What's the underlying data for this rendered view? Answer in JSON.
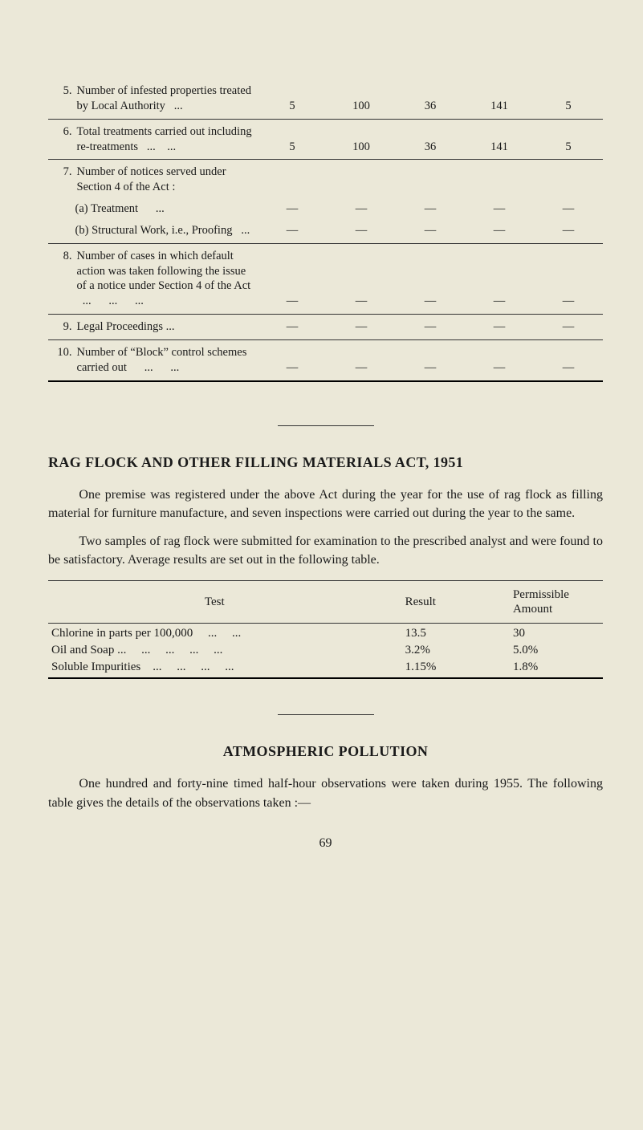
{
  "upper_table": {
    "rows": [
      {
        "num": "5.",
        "label": "Number of infested properties treated by Local Authority   ...",
        "c1": "5",
        "c2": "100",
        "c3": "36",
        "c4": "141",
        "c5": "5",
        "sub": false
      },
      {
        "num": "6.",
        "label": "Total treatments carried out including re-treatments   ...    ...",
        "c1": "5",
        "c2": "100",
        "c3": "36",
        "c4": "141",
        "c5": "5",
        "sub": false
      },
      {
        "num": "7.",
        "label": "Number of notices served under Section 4 of the Act :",
        "c1": "",
        "c2": "",
        "c3": "",
        "c4": "",
        "c5": "",
        "sub": false,
        "no_hr": true
      },
      {
        "num": "",
        "label": "(a) Treatment      ...",
        "c1": "—",
        "c2": "—",
        "c3": "—",
        "c4": "—",
        "c5": "—",
        "sub": true,
        "no_hr": true
      },
      {
        "num": "",
        "label": "(b) Structural Work, i.e., Proofing   ...",
        "c1": "—",
        "c2": "—",
        "c3": "—",
        "c4": "—",
        "c5": "—",
        "sub": true
      },
      {
        "num": "8.",
        "label": "Number of cases in which default action was taken following the issue of a notice under Section 4 of the Act   ...      ...      ...",
        "c1": "—",
        "c2": "—",
        "c3": "—",
        "c4": "—",
        "c5": "—",
        "sub": false
      },
      {
        "num": "9.",
        "label": "Legal Proceedings ...",
        "c1": "—",
        "c2": "—",
        "c3": "—",
        "c4": "—",
        "c5": "—",
        "sub": false
      },
      {
        "num": "10.",
        "label": "Number of “Block” control schemes carried out      ...      ...",
        "c1": "—",
        "c2": "—",
        "c3": "—",
        "c4": "—",
        "c5": "—",
        "sub": false,
        "thick": true
      }
    ]
  },
  "section1": {
    "title": "RAG FLOCK AND OTHER FILLING MATERIALS ACT, 1951",
    "p1": "One premise was registered under the above Act during the year for the use of rag flock as filling material for furniture manufacture, and seven inspections were carried out during the year to the same.",
    "p2": "Two samples of rag flock were submitted for examination to the prescribed analyst and were found to be satisfactory. Average results are set out in the following table."
  },
  "rag_table": {
    "headers": {
      "test": "Test",
      "result": "Result",
      "perm": "Permissible Amount"
    },
    "rows": [
      {
        "test": "Chlorine in parts per 100,000     ...     ...",
        "result": "13.5",
        "perm": "30"
      },
      {
        "test": "Oil and Soap ...     ...     ...     ...     ...",
        "result": "3.2%",
        "perm": "5.0%"
      },
      {
        "test": "Soluble Impurities    ...     ...     ...     ...",
        "result": "1.15%",
        "perm": "1.8%"
      }
    ]
  },
  "section2": {
    "title": "ATMOSPHERIC POLLUTION",
    "p1": "One hundred and forty-nine timed half-hour observations were taken during 1955. The following table gives the details of the observations taken :—"
  },
  "page_number": "69"
}
